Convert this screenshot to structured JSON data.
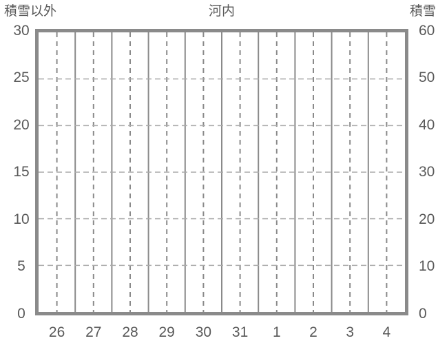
{
  "header": {
    "left_axis_title": "積雪以外",
    "chart_title": "河内",
    "right_axis_title": "積雪"
  },
  "colors": {
    "background": "#ffffff",
    "plot_border": "#8a8a8a",
    "grid_vertical_solid": "#8a8a8a",
    "grid_vertical_dashed": "#8a8a8a",
    "grid_horizontal_dashed": "#ababab",
    "text": "#595959"
  },
  "chart_data": {
    "type": "line",
    "title": "河内",
    "series": [],
    "x": {
      "tick_labels": [
        "26",
        "27",
        "28",
        "29",
        "30",
        "31",
        "1",
        "2",
        "3",
        "4"
      ],
      "note": "solid gridline at each day boundary, dashed gridline at each day midpoint; labels centered per day"
    },
    "left_axis": {
      "title": "積雪以外",
      "range": [
        0,
        30
      ],
      "tick_step": 5,
      "tick_labels": [
        "0",
        "5",
        "10",
        "15",
        "20",
        "25",
        "30"
      ]
    },
    "right_axis": {
      "title": "積雪",
      "range": [
        0,
        60
      ],
      "tick_step": 10,
      "tick_labels": [
        "0",
        "10",
        "20",
        "30",
        "40",
        "50",
        "60"
      ]
    },
    "horizontal_grid": "dashed",
    "legend": "none"
  }
}
